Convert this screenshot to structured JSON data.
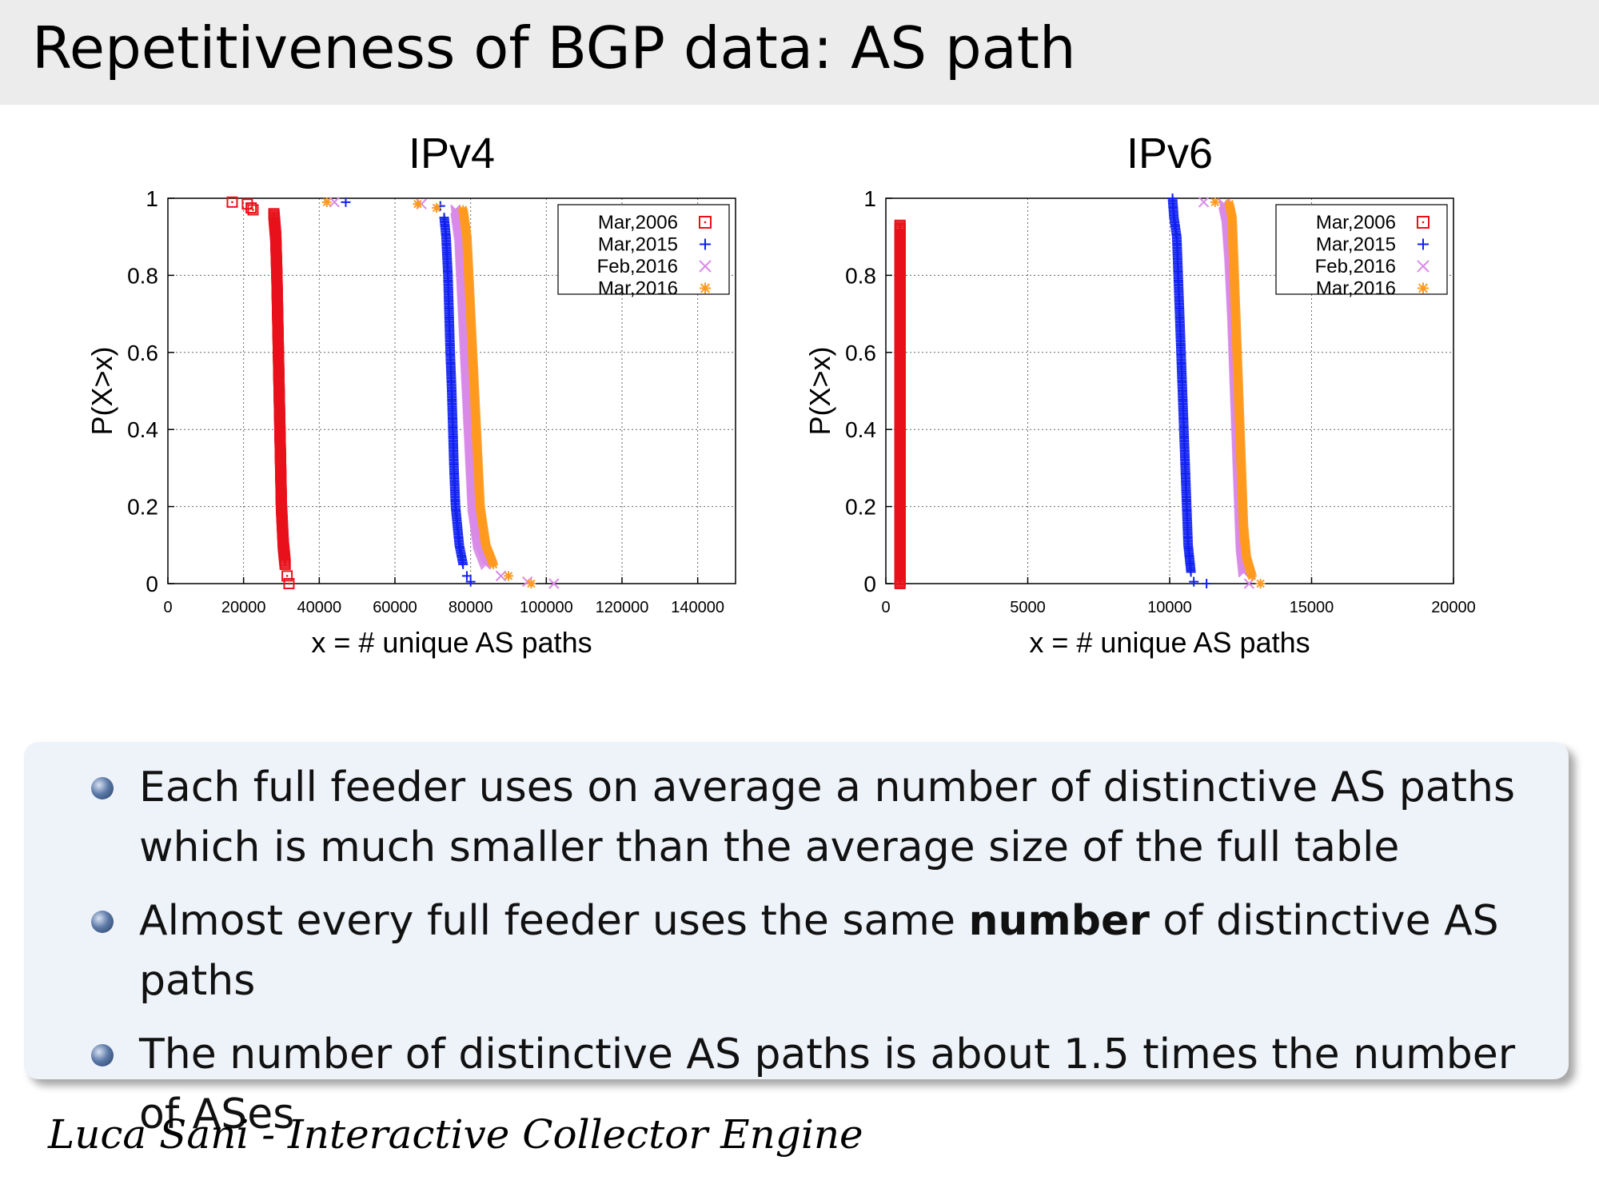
{
  "slide": {
    "title": "Repetitiveness of BGP data: AS path",
    "footer": "Luca Sani - Interactive Collector Engine"
  },
  "bullets": [
    {
      "parts": [
        {
          "text": "Each full feeder uses on average a number of distinctive AS paths which is much smaller than the average size of the full table",
          "bold": false
        }
      ]
    },
    {
      "parts": [
        {
          "text": "Almost every full feeder uses the same ",
          "bold": false
        },
        {
          "text": "number",
          "bold": true
        },
        {
          "text": " of distinctive AS paths",
          "bold": false
        }
      ]
    },
    {
      "parts": [
        {
          "text": "The number of distinctive AS paths is about 1.5 times the number of ASes",
          "bold": false
        }
      ]
    }
  ],
  "colors": {
    "Mar,2006": "#e8111a",
    "Mar,2015": "#1020f0",
    "Feb,2016": "#d98ae8",
    "Mar,2016": "#ff9a1f"
  },
  "chart_data": [
    {
      "type": "scatter",
      "title": "IPv4",
      "xlabel": "x = # unique AS paths",
      "ylabel": "P(X>x)",
      "xlim": [
        0,
        150000
      ],
      "ylim": [
        0,
        1
      ],
      "xticks": [
        0,
        20000,
        40000,
        60000,
        80000,
        100000,
        120000,
        140000
      ],
      "yticks": [
        0,
        0.2,
        0.4,
        0.6,
        0.8,
        1
      ],
      "grid": true,
      "legend_position": "top-right",
      "series": [
        {
          "name": "Mar,2006",
          "marker": "square",
          "points": [
            [
              17000,
              0.99
            ],
            [
              21000,
              0.985
            ],
            [
              22000,
              0.975
            ],
            [
              22500,
              0.97
            ],
            [
              28000,
              0.96
            ],
            [
              28500,
              0.9
            ],
            [
              28800,
              0.8
            ],
            [
              29000,
              0.7
            ],
            [
              29200,
              0.6
            ],
            [
              29400,
              0.5
            ],
            [
              29600,
              0.4
            ],
            [
              29800,
              0.3
            ],
            [
              30000,
              0.2
            ],
            [
              30500,
              0.1
            ],
            [
              31000,
              0.05
            ],
            [
              31500,
              0.02
            ],
            [
              32000,
              0.0
            ]
          ]
        },
        {
          "name": "Mar,2015",
          "marker": "plus",
          "points": [
            [
              47000,
              0.99
            ],
            [
              72000,
              0.98
            ],
            [
              73000,
              0.95
            ],
            [
              73500,
              0.9
            ],
            [
              74000,
              0.8
            ],
            [
              74300,
              0.7
            ],
            [
              74600,
              0.6
            ],
            [
              75000,
              0.5
            ],
            [
              75300,
              0.4
            ],
            [
              75600,
              0.3
            ],
            [
              76000,
              0.2
            ],
            [
              77000,
              0.1
            ],
            [
              78000,
              0.05
            ],
            [
              79000,
              0.02
            ],
            [
              80000,
              0.005
            ]
          ]
        },
        {
          "name": "Feb,2016",
          "marker": "cross",
          "points": [
            [
              44000,
              0.99
            ],
            [
              67000,
              0.985
            ],
            [
              76000,
              0.97
            ],
            [
              77000,
              0.9
            ],
            [
              77500,
              0.8
            ],
            [
              78000,
              0.7
            ],
            [
              78500,
              0.6
            ],
            [
              79000,
              0.5
            ],
            [
              79500,
              0.4
            ],
            [
              80000,
              0.3
            ],
            [
              80500,
              0.2
            ],
            [
              82000,
              0.1
            ],
            [
              84000,
              0.05
            ],
            [
              88000,
              0.02
            ],
            [
              95000,
              0.005
            ],
            [
              102000,
              0.0
            ]
          ]
        },
        {
          "name": "Mar,2016",
          "marker": "star",
          "points": [
            [
              42000,
              0.99
            ],
            [
              66000,
              0.985
            ],
            [
              71000,
              0.975
            ],
            [
              78000,
              0.97
            ],
            [
              79000,
              0.9
            ],
            [
              79500,
              0.8
            ],
            [
              80000,
              0.7
            ],
            [
              80500,
              0.6
            ],
            [
              81000,
              0.5
            ],
            [
              81500,
              0.4
            ],
            [
              82000,
              0.3
            ],
            [
              82500,
              0.2
            ],
            [
              84000,
              0.1
            ],
            [
              86000,
              0.05
            ],
            [
              90000,
              0.02
            ],
            [
              96000,
              0.0
            ]
          ]
        }
      ]
    },
    {
      "type": "scatter",
      "title": "IPv6",
      "xlabel": "x = # unique AS paths",
      "ylabel": "P(X>x)",
      "xlim": [
        0,
        20000
      ],
      "ylim": [
        0,
        1
      ],
      "xticks": [
        0,
        5000,
        10000,
        15000,
        20000
      ],
      "yticks": [
        0,
        0.2,
        0.4,
        0.6,
        0.8,
        1
      ],
      "grid": true,
      "legend_position": "top-right",
      "series": [
        {
          "name": "Mar,2006",
          "marker": "square",
          "points": [
            [
              500,
              0.93
            ],
            [
              500,
              0.86
            ],
            [
              500,
              0.79
            ],
            [
              500,
              0.72
            ],
            [
              500,
              0.64
            ],
            [
              500,
              0.5
            ],
            [
              500,
              0.36
            ],
            [
              500,
              0.29
            ],
            [
              500,
              0.21
            ],
            [
              500,
              0.14
            ],
            [
              500,
              0.07
            ],
            [
              500,
              0.0
            ]
          ]
        },
        {
          "name": "Mar,2015",
          "marker": "plus",
          "points": [
            [
              10100,
              1.0
            ],
            [
              10150,
              0.95
            ],
            [
              10250,
              0.9
            ],
            [
              10300,
              0.8
            ],
            [
              10350,
              0.7
            ],
            [
              10400,
              0.6
            ],
            [
              10450,
              0.5
            ],
            [
              10500,
              0.4
            ],
            [
              10550,
              0.3
            ],
            [
              10600,
              0.2
            ],
            [
              10650,
              0.1
            ],
            [
              10750,
              0.03
            ],
            [
              10850,
              0.005
            ],
            [
              11300,
              0.0
            ]
          ]
        },
        {
          "name": "Feb,2016",
          "marker": "cross",
          "points": [
            [
              11200,
              0.99
            ],
            [
              11900,
              0.985
            ],
            [
              12000,
              0.95
            ],
            [
              12100,
              0.85
            ],
            [
              12200,
              0.7
            ],
            [
              12250,
              0.6
            ],
            [
              12300,
              0.5
            ],
            [
              12350,
              0.4
            ],
            [
              12400,
              0.3
            ],
            [
              12450,
              0.2
            ],
            [
              12500,
              0.1
            ],
            [
              12600,
              0.03
            ],
            [
              12800,
              0.0
            ]
          ]
        },
        {
          "name": "Mar,2016",
          "marker": "star",
          "points": [
            [
              11600,
              0.99
            ],
            [
              12100,
              0.985
            ],
            [
              12200,
              0.95
            ],
            [
              12250,
              0.85
            ],
            [
              12300,
              0.75
            ],
            [
              12350,
              0.65
            ],
            [
              12400,
              0.55
            ],
            [
              12450,
              0.45
            ],
            [
              12500,
              0.35
            ],
            [
              12550,
              0.25
            ],
            [
              12600,
              0.15
            ],
            [
              12700,
              0.07
            ],
            [
              12900,
              0.02
            ],
            [
              13200,
              0.0
            ]
          ]
        }
      ]
    }
  ]
}
